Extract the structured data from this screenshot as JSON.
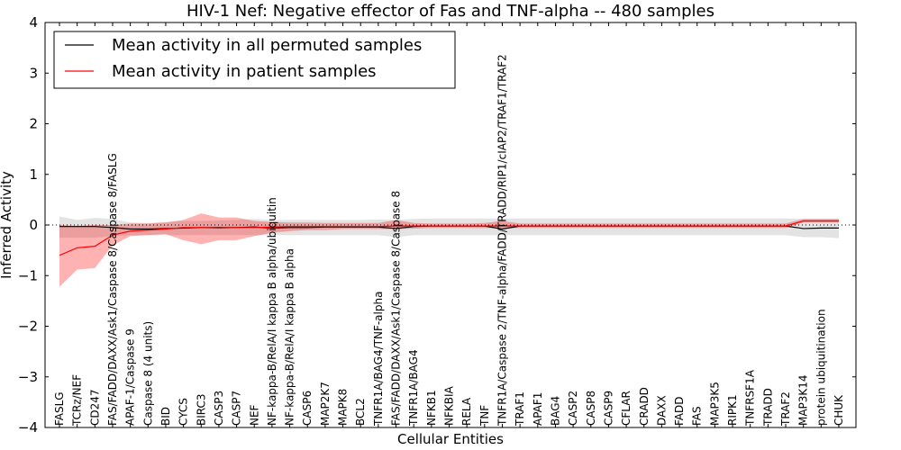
{
  "chart_data": {
    "type": "line",
    "title": "HIV-1 Nef: Negative effector of Fas and TNF-alpha -- 480 samples",
    "xlabel": "Cellular Entities",
    "ylabel": "Inferred Activity",
    "ylim": [
      -4,
      4
    ],
    "yticks": [
      "−4",
      "−3",
      "−2",
      "−1",
      "0",
      "1",
      "2",
      "3",
      "4"
    ],
    "legend_position": "top-left",
    "categories": [
      "FASLG",
      "TCRz/NEF",
      "CD247",
      "FAS/FADD/DAXX/Ask1/Caspase 8/Caspase 8/FASLG",
      "APAF-1/Caspase 9",
      "Caspase 8 (4 units)",
      "BID",
      "CYCS",
      "BIRC3",
      "CASP3",
      "CASP7",
      "NEF",
      "NF-kappa-B/RelA/I kappa B alpha/ubiquitin",
      "NF-kappa-B/RelA/I kappa B alpha",
      "CASP6",
      "MAP2K7",
      "MAPK8",
      "BCL2",
      "TNFR1A/BAG4/TNF-alpha",
      "FAS/FADD/DAXX/Ask1/Caspase 8/Caspase 8",
      "TNFR1A/BAG4",
      "NFKB1",
      "NFKBIA",
      "RELA",
      "TNF",
      "TNFR1A/Caspase 2/TNF-alpha/FADD/TRADD/RIP1/cIAP2/TRAF1/TRAF2",
      "TRAF1",
      "APAF1",
      "BAG4",
      "CASP2",
      "CASP8",
      "CASP9",
      "CFLAR",
      "CRADD",
      "DAXX",
      "FADD",
      "FAS",
      "MAP3K5",
      "RIPK1",
      "TNFRSF1A",
      "TRADD",
      "TRAF2",
      "MAP3K14",
      "protein ubiquitination",
      "CHUK"
    ],
    "series": [
      {
        "name": "Mean activity in all permuted samples",
        "color": "#000000",
        "values": [
          -0.03,
          -0.03,
          -0.03,
          -0.05,
          -0.08,
          -0.08,
          -0.07,
          -0.06,
          -0.05,
          -0.05,
          -0.05,
          -0.04,
          -0.06,
          -0.05,
          -0.05,
          -0.04,
          -0.04,
          -0.04,
          -0.04,
          -0.07,
          -0.03,
          -0.02,
          -0.02,
          -0.02,
          -0.02,
          -0.08,
          -0.02,
          -0.02,
          -0.02,
          -0.02,
          -0.02,
          -0.02,
          -0.02,
          -0.02,
          -0.02,
          -0.02,
          -0.02,
          -0.02,
          -0.02,
          -0.02,
          -0.02,
          -0.02,
          -0.07,
          -0.06,
          -0.06
        ],
        "band_low": [
          -0.25,
          -0.25,
          -0.25,
          -0.22,
          -0.2,
          -0.2,
          -0.2,
          -0.2,
          -0.2,
          -0.2,
          -0.2,
          -0.2,
          -0.2,
          -0.2,
          -0.2,
          -0.2,
          -0.2,
          -0.2,
          -0.2,
          -0.24,
          -0.2,
          -0.2,
          -0.2,
          -0.2,
          -0.2,
          -0.2,
          -0.2,
          -0.2,
          -0.2,
          -0.2,
          -0.2,
          -0.2,
          -0.2,
          -0.2,
          -0.2,
          -0.2,
          -0.2,
          -0.2,
          -0.2,
          -0.2,
          -0.2,
          -0.2,
          -0.24,
          -0.24,
          -0.26
        ],
        "band_high": [
          0.17,
          0.1,
          0.14,
          0.12,
          0.05,
          0.04,
          0.06,
          0.08,
          0.08,
          0.09,
          0.1,
          0.12,
          0.1,
          0.1,
          0.1,
          0.1,
          0.1,
          0.1,
          0.11,
          0.1,
          0.12,
          0.13,
          0.13,
          0.13,
          0.13,
          0.13,
          0.13,
          0.13,
          0.13,
          0.13,
          0.13,
          0.13,
          0.13,
          0.13,
          0.13,
          0.13,
          0.13,
          0.13,
          0.13,
          0.13,
          0.13,
          0.13,
          0.12,
          0.12,
          0.12
        ]
      },
      {
        "name": "Mean activity in patient samples",
        "color": "#ff0000",
        "values": [
          -0.6,
          -0.45,
          -0.42,
          -0.2,
          -0.12,
          -0.1,
          -0.08,
          -0.05,
          -0.05,
          -0.06,
          -0.05,
          -0.05,
          -0.04,
          -0.03,
          -0.03,
          -0.03,
          -0.03,
          -0.03,
          -0.03,
          -0.02,
          -0.02,
          -0.02,
          -0.02,
          -0.02,
          -0.02,
          -0.02,
          -0.02,
          -0.02,
          -0.02,
          -0.02,
          -0.02,
          -0.02,
          -0.02,
          -0.02,
          -0.02,
          -0.02,
          -0.02,
          -0.02,
          -0.02,
          -0.02,
          -0.02,
          -0.02,
          0.08,
          0.08,
          0.08
        ],
        "band_low": [
          -1.22,
          -0.88,
          -0.85,
          -0.4,
          -0.22,
          -0.2,
          -0.18,
          -0.3,
          -0.38,
          -0.3,
          -0.3,
          -0.22,
          -0.15,
          -0.12,
          -0.1,
          -0.1,
          -0.08,
          -0.08,
          -0.08,
          -0.08,
          -0.07,
          -0.06,
          -0.06,
          -0.06,
          -0.06,
          -0.06,
          -0.06,
          -0.06,
          -0.06,
          -0.06,
          -0.06,
          -0.06,
          -0.06,
          -0.06,
          -0.06,
          -0.06,
          -0.06,
          -0.06,
          -0.06,
          -0.06,
          -0.06,
          -0.06,
          0.05,
          0.05,
          0.05
        ],
        "band_high": [
          0.0,
          -0.02,
          0.0,
          0.0,
          0.03,
          0.03,
          0.05,
          0.1,
          0.23,
          0.15,
          0.15,
          0.08,
          0.06,
          0.05,
          0.05,
          0.04,
          0.04,
          0.04,
          0.04,
          0.1,
          0.04,
          0.03,
          0.03,
          0.03,
          0.04,
          0.08,
          0.03,
          0.03,
          0.03,
          0.03,
          0.03,
          0.03,
          0.03,
          0.03,
          0.03,
          0.03,
          0.03,
          0.03,
          0.03,
          0.03,
          0.03,
          0.03,
          0.12,
          0.12,
          0.12
        ]
      }
    ]
  }
}
